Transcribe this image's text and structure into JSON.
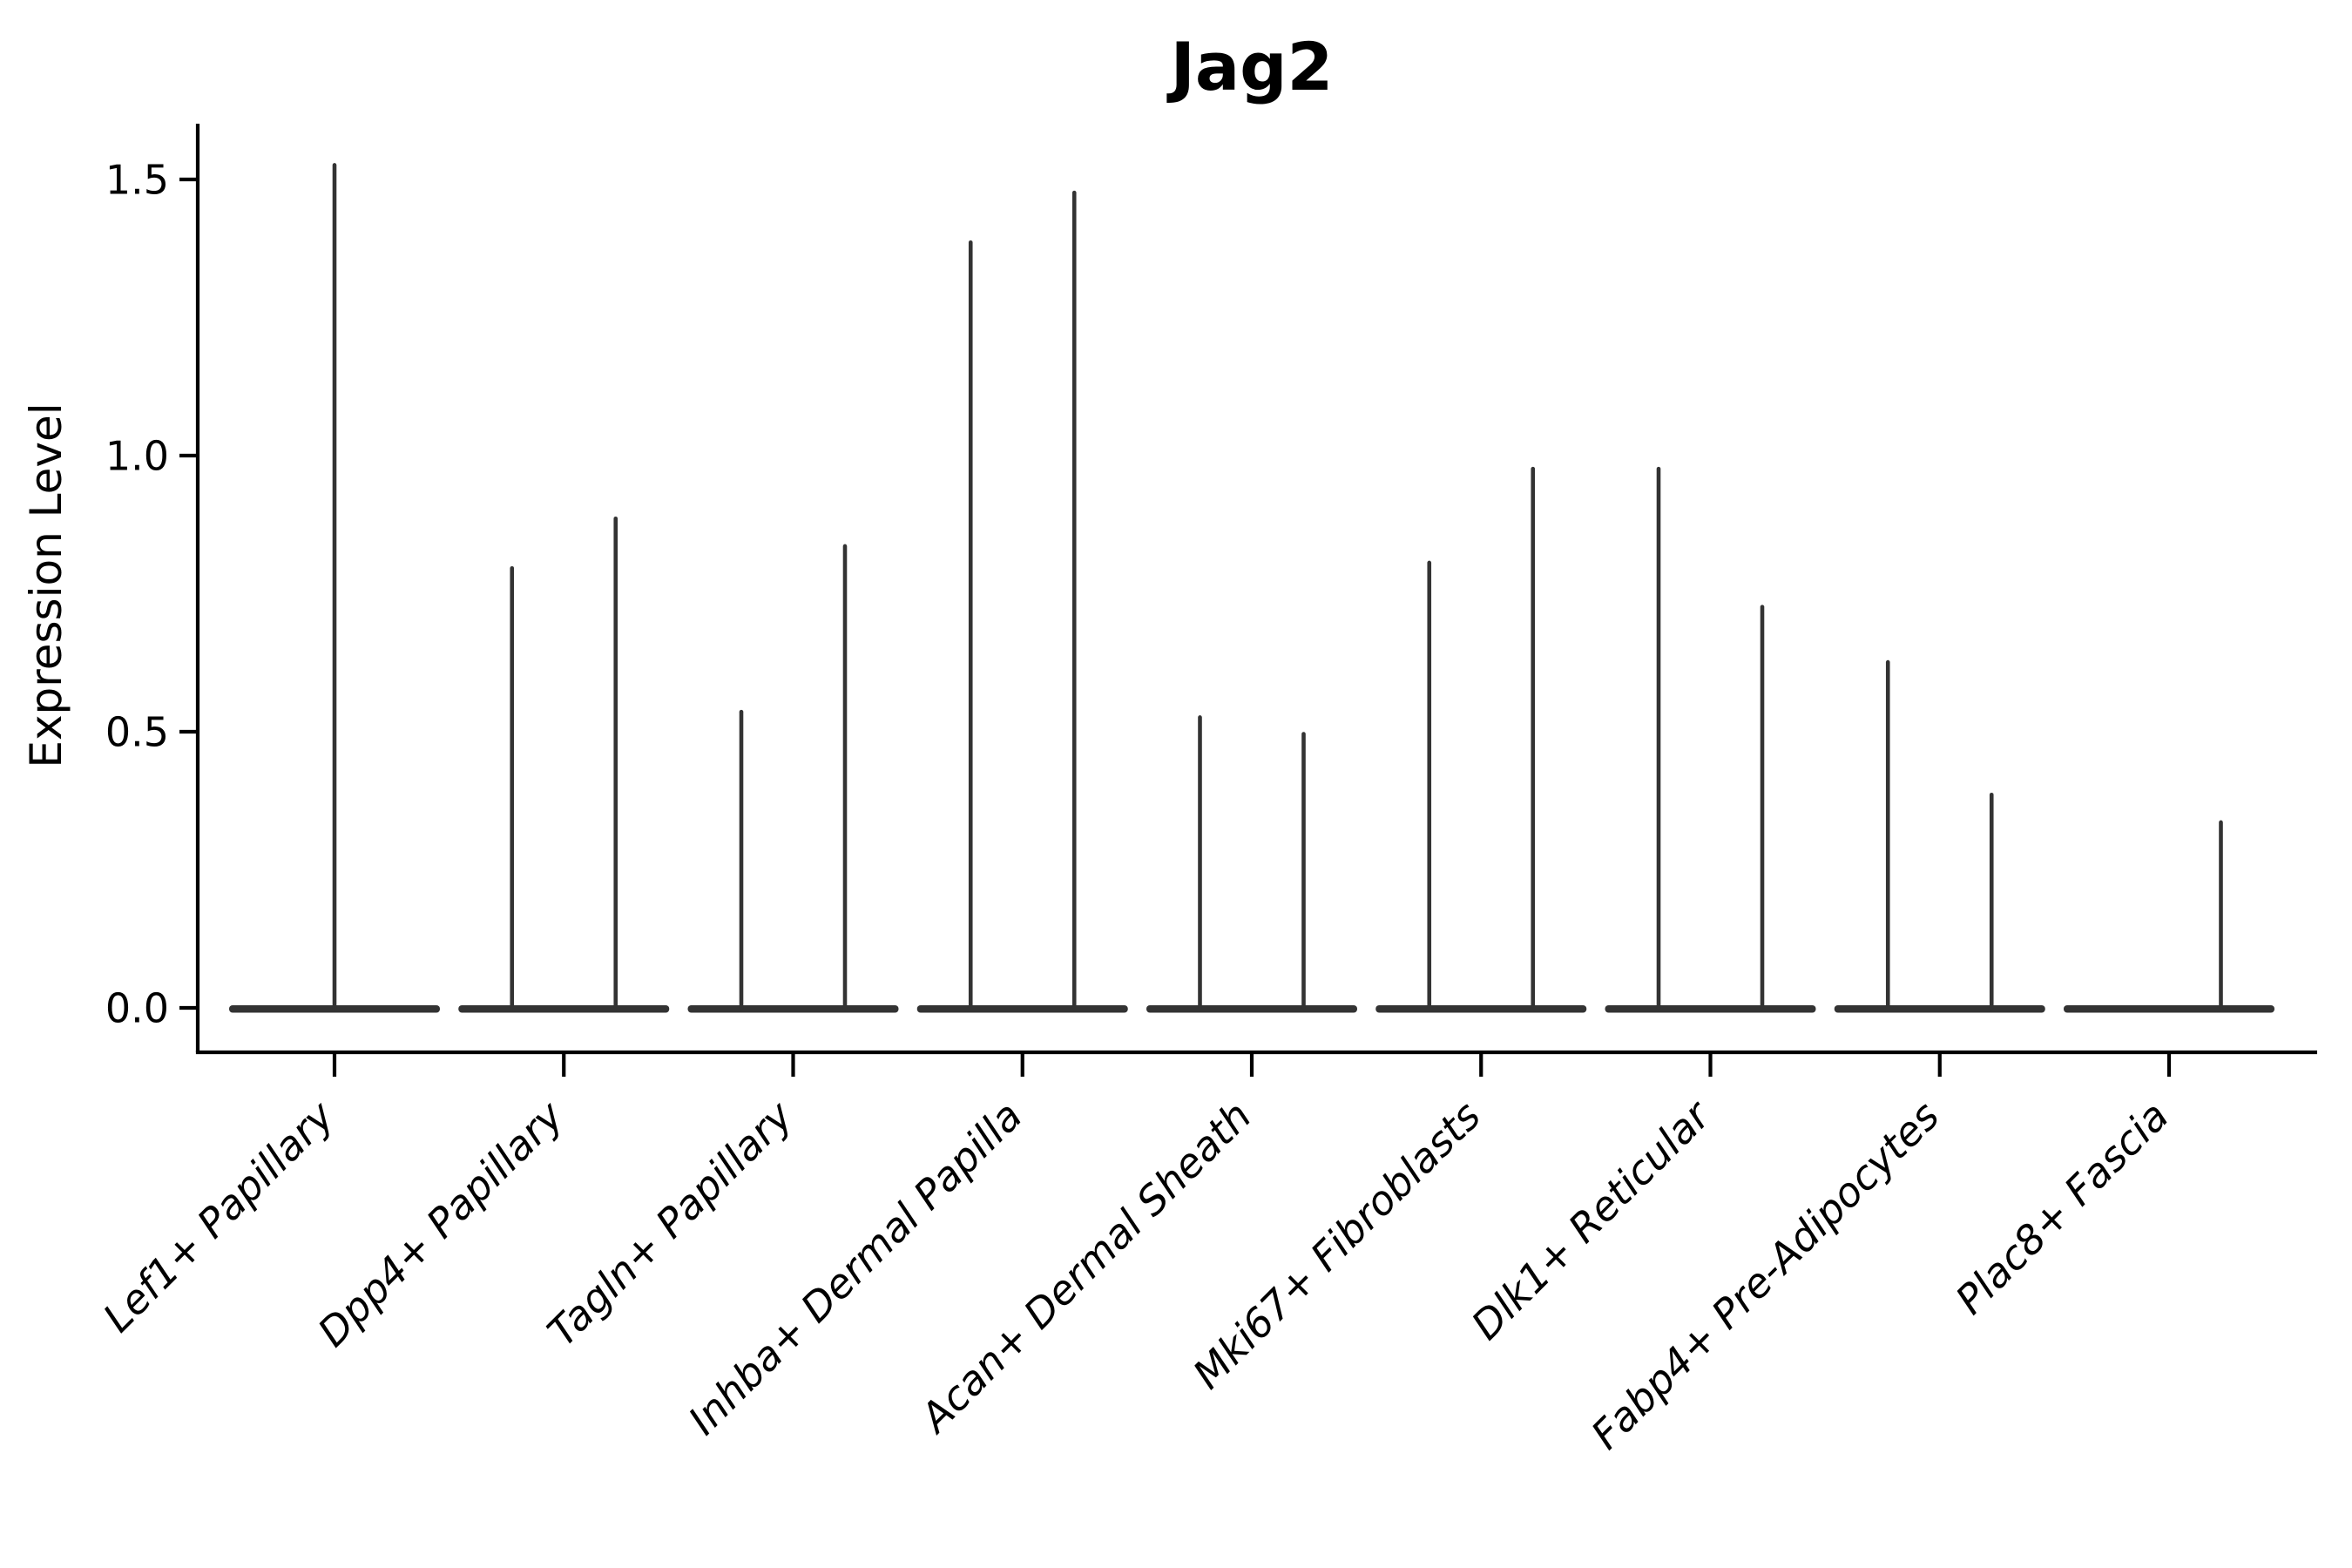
{
  "figure": {
    "background": "#ffffff"
  },
  "chart_data": {
    "type": "violin",
    "title": "Jag2",
    "xlabel": "",
    "ylabel": "Expression Level",
    "ylim": [
      -0.08,
      1.6
    ],
    "yticks": [
      0.0,
      0.5,
      1.0,
      1.5
    ],
    "ytick_labels": [
      "0.0",
      "0.5",
      "1.0",
      "1.5"
    ],
    "grid": false,
    "legend_position": "none",
    "x_label_rotation_deg": 45,
    "x_label_style": "italic",
    "title_weight": "bold",
    "categories": [
      "Lef1+ Papillary",
      "Dpp4+ Papillary",
      "Tagln+ Papillary",
      "Inhba+ Dermal Papilla",
      "Acan+ Dermal Sheath",
      "Mki67+ Fibroblasts",
      "Dlk1+ Reticular",
      "Fabp4+ Pre-Adipocytes",
      "Plac8+ Fascia"
    ],
    "violins": [
      {
        "category": "Lef1+ Papillary",
        "base_at_zero": true,
        "spikes": [
          {
            "position": "center",
            "max": 1.53
          }
        ]
      },
      {
        "category": "Dpp4+ Papillary",
        "base_at_zero": true,
        "spikes": [
          {
            "position": "left",
            "max": 0.8
          },
          {
            "position": "right",
            "max": 0.89
          }
        ]
      },
      {
        "category": "Tagln+ Papillary",
        "base_at_zero": true,
        "spikes": [
          {
            "position": "left",
            "max": 0.54
          },
          {
            "position": "right",
            "max": 0.84
          }
        ]
      },
      {
        "category": "Inhba+ Dermal Papilla",
        "base_at_zero": true,
        "spikes": [
          {
            "position": "left",
            "max": 1.39
          },
          {
            "position": "right",
            "max": 1.48
          }
        ]
      },
      {
        "category": "Acan+ Dermal Sheath",
        "base_at_zero": true,
        "spikes": [
          {
            "position": "left",
            "max": 0.53
          },
          {
            "position": "right",
            "max": 0.5
          }
        ]
      },
      {
        "category": "Mki67+ Fibroblasts",
        "base_at_zero": true,
        "spikes": [
          {
            "position": "left",
            "max": 0.81
          },
          {
            "position": "right",
            "max": 0.98
          }
        ]
      },
      {
        "category": "Dlk1+ Reticular",
        "base_at_zero": true,
        "spikes": [
          {
            "position": "left",
            "max": 0.98
          },
          {
            "position": "right",
            "max": 0.73
          }
        ]
      },
      {
        "category": "Fabp4+ Pre-Adipocytes",
        "base_at_zero": true,
        "spikes": [
          {
            "position": "left",
            "max": 0.63
          },
          {
            "position": "right",
            "max": 0.39
          }
        ]
      },
      {
        "category": "Plac8+ Fascia",
        "base_at_zero": true,
        "spikes": [
          {
            "position": "right",
            "max": 0.34
          }
        ]
      }
    ],
    "colors": {
      "violin": "#333333",
      "axis": "#000000",
      "text": "#000000"
    }
  }
}
